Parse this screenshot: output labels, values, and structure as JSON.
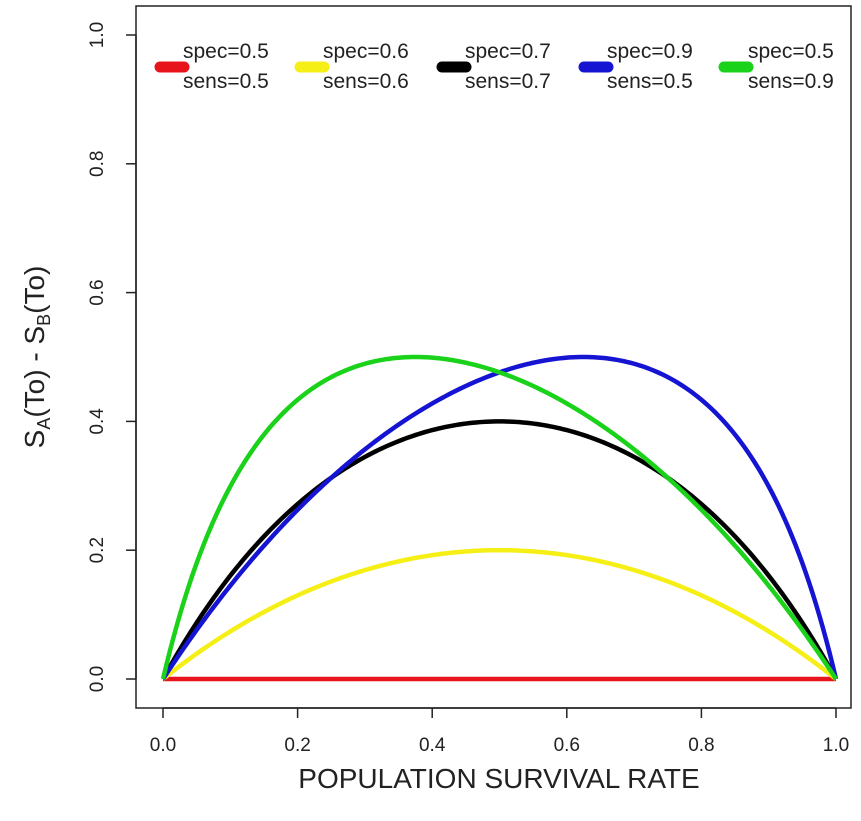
{
  "chart_data": {
    "type": "line",
    "title": "",
    "xlabel": "POPULATION SURVIVAL RATE",
    "ylabel": {
      "parts": [
        "S",
        "A",
        "(To) - S",
        "B",
        "(To)"
      ]
    },
    "xlim": [
      0.0,
      1.0
    ],
    "ylim": [
      0.0,
      1.0
    ],
    "x_ticks": [
      "0.0",
      "0.2",
      "0.4",
      "0.6",
      "0.8",
      "1.0"
    ],
    "y_ticks": [
      "0.0",
      "0.2",
      "0.4",
      "0.6",
      "0.8",
      "1.0"
    ],
    "grid": false,
    "legend_position": "top",
    "series": [
      {
        "name": "spec=0.5 sens=0.5",
        "label_line1": "spec=0.5",
        "label_line2": "sens=0.5",
        "color": "#e8141b",
        "spec": 0.5,
        "sens": 0.5,
        "peak": [
          0.5,
          0.0
        ]
      },
      {
        "name": "spec=0.6 sens=0.6",
        "label_line1": "spec=0.6",
        "label_line2": "sens=0.6",
        "color": "#f5ef16",
        "spec": 0.6,
        "sens": 0.6,
        "peak": [
          0.5,
          0.2
        ]
      },
      {
        "name": "spec=0.7 sens=0.7",
        "label_line1": "spec=0.7",
        "label_line2": "sens=0.7",
        "color": "#000000",
        "spec": 0.7,
        "sens": 0.7,
        "peak": [
          0.5,
          0.4
        ]
      },
      {
        "name": "spec=0.9 sens=0.5",
        "label_line1": "spec=0.9",
        "label_line2": "sens=0.5",
        "color": "#1414d2",
        "spec": 0.9,
        "sens": 0.5,
        "peak": [
          0.625,
          0.5
        ]
      },
      {
        "name": "spec=0.5 sens=0.9",
        "label_line1": "spec=0.5",
        "label_line2": "sens=0.9",
        "color": "#19d219",
        "spec": 0.5,
        "sens": 0.9,
        "peak": [
          0.375,
          0.5
        ]
      }
    ]
  }
}
